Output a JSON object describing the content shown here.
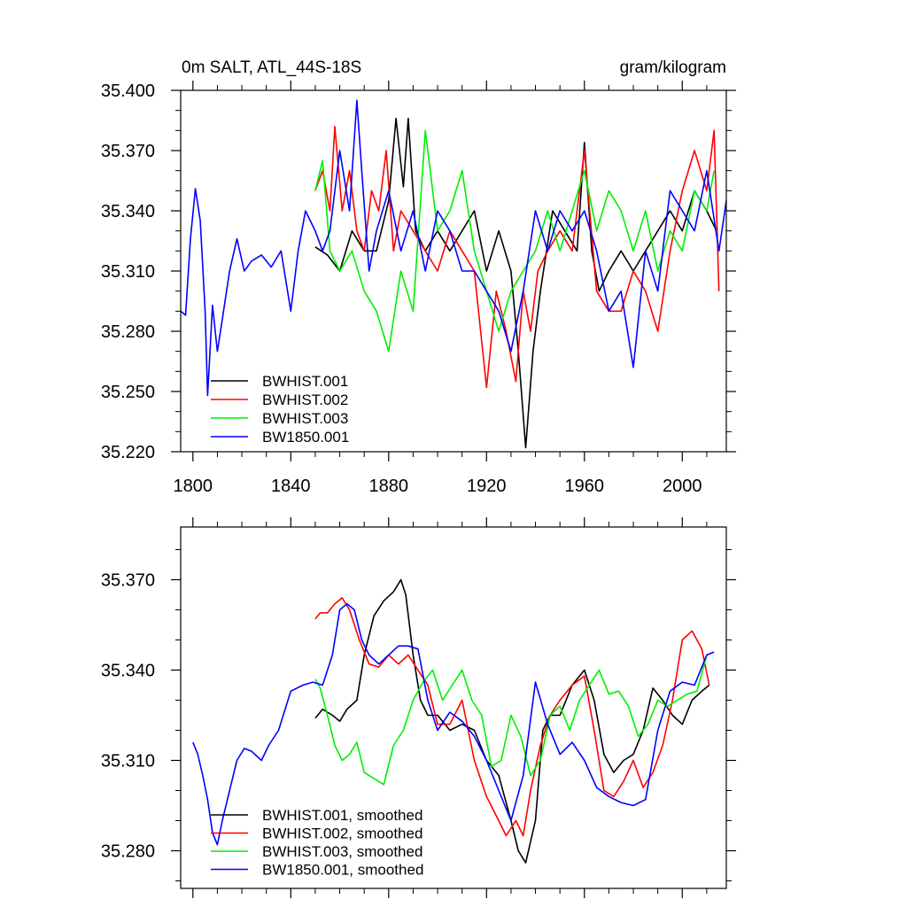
{
  "chart_data": [
    {
      "type": "line",
      "title_left": "0m SALT, ATL_44S-18S",
      "title_right": "gram/kilogram",
      "xlabel": "",
      "ylabel": "",
      "xlim": [
        1795,
        2018
      ],
      "ylim": [
        35.22,
        35.4
      ],
      "x_ticks": [
        1800,
        1840,
        1880,
        1920,
        1960,
        2000
      ],
      "y_ticks": [
        35.22,
        35.25,
        35.28,
        35.31,
        35.34,
        35.37,
        35.4
      ],
      "x_tick_labels": [
        "1800",
        "1840",
        "1880",
        "1920",
        "1960",
        "2000"
      ],
      "y_tick_labels": [
        "35.220",
        "35.250",
        "35.280",
        "35.310",
        "35.340",
        "35.370",
        "35.400"
      ],
      "grid": false,
      "legend_position": "bottom-left",
      "series": [
        {
          "name": "BWHIST.001",
          "color": "#000000",
          "x": [
            1850,
            1855,
            1860,
            1865,
            1870,
            1875,
            1880,
            1883,
            1886,
            1888,
            1891,
            1895,
            1900,
            1905,
            1910,
            1915,
            1920,
            1925,
            1930,
            1933,
            1936,
            1939,
            1942,
            1947,
            1952,
            1957,
            1960,
            1963,
            1966,
            1970,
            1975,
            1980,
            1985,
            1990,
            1995,
            2000,
            2005,
            2010,
            2014
          ],
          "values": [
            35.322,
            35.318,
            35.31,
            35.33,
            35.32,
            35.32,
            35.345,
            35.386,
            35.352,
            35.386,
            35.33,
            35.32,
            35.33,
            35.32,
            35.33,
            35.34,
            35.31,
            35.33,
            35.31,
            35.27,
            35.222,
            35.27,
            35.3,
            35.34,
            35.33,
            35.32,
            35.374,
            35.32,
            35.3,
            35.31,
            35.32,
            35.31,
            35.32,
            35.33,
            35.34,
            35.33,
            35.35,
            35.34,
            35.33
          ]
        },
        {
          "name": "BWHIST.002",
          "color": "#ff0000",
          "x": [
            1850,
            1853,
            1856,
            1858,
            1861,
            1864,
            1867,
            1870,
            1873,
            1876,
            1879,
            1882,
            1885,
            1890,
            1895,
            1900,
            1905,
            1910,
            1915,
            1920,
            1924,
            1928,
            1932,
            1935,
            1938,
            1941,
            1945,
            1950,
            1955,
            1960,
            1965,
            1970,
            1975,
            1980,
            1985,
            1990,
            1995,
            2000,
            2005,
            2010,
            2013,
            2015
          ],
          "values": [
            35.35,
            35.36,
            35.34,
            35.382,
            35.34,
            35.36,
            35.33,
            35.32,
            35.35,
            35.34,
            35.37,
            35.32,
            35.34,
            35.33,
            35.32,
            35.31,
            35.33,
            35.32,
            35.31,
            35.252,
            35.3,
            35.28,
            35.255,
            35.3,
            35.28,
            35.31,
            35.32,
            35.33,
            35.32,
            35.37,
            35.3,
            35.29,
            35.29,
            35.31,
            35.3,
            35.28,
            35.32,
            35.35,
            35.37,
            35.35,
            35.38,
            35.3
          ]
        },
        {
          "name": "BWHIST.003",
          "color": "#00ee00",
          "x": [
            1850,
            1853,
            1856,
            1860,
            1865,
            1870,
            1875,
            1880,
            1885,
            1890,
            1895,
            1900,
            1905,
            1910,
            1915,
            1920,
            1925,
            1930,
            1935,
            1940,
            1945,
            1950,
            1955,
            1960,
            1965,
            1970,
            1975,
            1980,
            1985,
            1990,
            1995,
            2000,
            2005,
            2010,
            2013
          ],
          "values": [
            35.35,
            35.365,
            35.32,
            35.31,
            35.32,
            35.3,
            35.29,
            35.27,
            35.31,
            35.29,
            35.38,
            35.33,
            35.34,
            35.36,
            35.32,
            35.3,
            35.28,
            35.3,
            35.31,
            35.32,
            35.34,
            35.32,
            35.34,
            35.36,
            35.33,
            35.35,
            35.34,
            35.32,
            35.34,
            35.31,
            35.33,
            35.32,
            35.35,
            35.34,
            35.36
          ]
        },
        {
          "name": "BW1850.001",
          "color": "#0000ff",
          "x": [
            1795,
            1797,
            1799,
            1801,
            1803,
            1805,
            1806,
            1808,
            1810,
            1812,
            1815,
            1818,
            1821,
            1824,
            1828,
            1832,
            1836,
            1840,
            1843,
            1846,
            1850,
            1853,
            1856,
            1860,
            1864,
            1867,
            1869,
            1872,
            1875,
            1880,
            1885,
            1890,
            1895,
            1900,
            1905,
            1910,
            1915,
            1920,
            1925,
            1930,
            1935,
            1940,
            1945,
            1950,
            1955,
            1960,
            1965,
            1970,
            1975,
            1980,
            1985,
            1990,
            1995,
            2000,
            2005,
            2010,
            2015,
            2018
          ],
          "values": [
            35.29,
            35.288,
            35.326,
            35.351,
            35.335,
            35.29,
            35.248,
            35.293,
            35.27,
            35.286,
            35.31,
            35.326,
            35.31,
            35.315,
            35.318,
            35.312,
            35.32,
            35.29,
            35.32,
            35.34,
            35.33,
            35.32,
            35.33,
            35.37,
            35.34,
            35.395,
            35.36,
            35.31,
            35.33,
            35.35,
            35.32,
            35.34,
            35.31,
            35.34,
            35.33,
            35.31,
            35.31,
            35.3,
            35.29,
            35.27,
            35.3,
            35.34,
            35.32,
            35.34,
            35.33,
            35.34,
            35.32,
            35.29,
            35.3,
            35.262,
            35.32,
            35.3,
            35.35,
            35.34,
            35.33,
            35.36,
            35.32,
            35.345
          ]
        }
      ]
    },
    {
      "type": "line",
      "title_left": "",
      "title_right": "",
      "xlabel": "",
      "ylabel": "",
      "xlim": [
        1795,
        2018
      ],
      "ylim": [
        35.2675,
        35.3875
      ],
      "x_ticks": [
        1800,
        1840,
        1880,
        1920,
        1960,
        2000
      ],
      "y_ticks": [
        35.28,
        35.31,
        35.34,
        35.37
      ],
      "x_tick_labels": [],
      "y_tick_labels": [
        "35.280",
        "35.310",
        "35.340",
        "35.370"
      ],
      "grid": false,
      "legend_position": "bottom-left",
      "series": [
        {
          "name": "BWHIST.001, smoothed",
          "color": "#000000",
          "x": [
            1850,
            1853,
            1857,
            1860,
            1863,
            1867,
            1870,
            1874,
            1878,
            1882,
            1885,
            1887,
            1890,
            1893,
            1896,
            1900,
            1905,
            1910,
            1915,
            1920,
            1925,
            1930,
            1933,
            1936,
            1940,
            1943,
            1946,
            1950,
            1955,
            1960,
            1964,
            1968,
            1972,
            1976,
            1980,
            1984,
            1988,
            1992,
            1996,
            2000,
            2004,
            2008,
            2011
          ],
          "values": [
            35.324,
            35.327,
            35.325,
            35.323,
            35.327,
            35.33,
            35.345,
            35.358,
            35.363,
            35.366,
            35.37,
            35.365,
            35.345,
            35.33,
            35.325,
            35.325,
            35.32,
            35.322,
            35.32,
            35.31,
            35.305,
            35.29,
            35.28,
            35.276,
            35.29,
            35.32,
            35.325,
            35.325,
            35.335,
            35.34,
            35.33,
            35.312,
            35.306,
            35.31,
            35.312,
            35.32,
            35.334,
            35.33,
            35.325,
            35.322,
            35.33,
            35.333,
            35.335
          ]
        },
        {
          "name": "BWHIST.002, smoothed",
          "color": "#ff0000",
          "x": [
            1850,
            1852,
            1855,
            1858,
            1861,
            1864,
            1868,
            1872,
            1876,
            1880,
            1884,
            1888,
            1892,
            1896,
            1900,
            1905,
            1910,
            1915,
            1920,
            1925,
            1928,
            1932,
            1935,
            1938,
            1942,
            1946,
            1950,
            1955,
            1960,
            1964,
            1968,
            1972,
            1976,
            1980,
            1984,
            1988,
            1992,
            1996,
            2000,
            2004,
            2008,
            2011
          ],
          "values": [
            35.357,
            35.359,
            35.359,
            35.362,
            35.364,
            35.36,
            35.35,
            35.342,
            35.341,
            35.345,
            35.342,
            35.345,
            35.34,
            35.335,
            35.322,
            35.322,
            35.33,
            35.31,
            35.298,
            35.29,
            35.285,
            35.29,
            35.285,
            35.3,
            35.315,
            35.325,
            35.33,
            35.335,
            35.338,
            35.32,
            35.3,
            35.298,
            35.303,
            35.31,
            35.301,
            35.306,
            35.315,
            35.33,
            35.35,
            35.353,
            35.347,
            35.335
          ]
        },
        {
          "name": "BWHIST.003, smoothed",
          "color": "#00ee00",
          "x": [
            1850,
            1852,
            1855,
            1858,
            1861,
            1864,
            1867,
            1870,
            1874,
            1878,
            1882,
            1886,
            1890,
            1894,
            1898,
            1902,
            1906,
            1910,
            1914,
            1918,
            1922,
            1926,
            1930,
            1934,
            1938,
            1942,
            1946,
            1950,
            1954,
            1958,
            1962,
            1966,
            1970,
            1974,
            1978,
            1982,
            1986,
            1990,
            1994,
            1998,
            2002,
            2006,
            2010
          ],
          "values": [
            35.337,
            35.334,
            35.325,
            35.315,
            35.31,
            35.312,
            35.316,
            35.306,
            35.304,
            35.302,
            35.315,
            35.32,
            35.33,
            35.336,
            35.34,
            35.33,
            35.335,
            35.34,
            35.33,
            35.325,
            35.308,
            35.31,
            35.325,
            35.318,
            35.305,
            35.31,
            35.325,
            35.328,
            35.32,
            35.33,
            35.335,
            35.34,
            35.332,
            35.333,
            35.328,
            35.318,
            35.322,
            35.33,
            35.328,
            35.33,
            35.332,
            35.333,
            35.345
          ]
        },
        {
          "name": "BW1850.001, smoothed",
          "color": "#0000ff",
          "x": [
            1800,
            1802,
            1804,
            1806,
            1808,
            1810,
            1812,
            1815,
            1818,
            1821,
            1824,
            1828,
            1831,
            1835,
            1840,
            1845,
            1849,
            1853,
            1857,
            1860,
            1863,
            1866,
            1869,
            1872,
            1876,
            1880,
            1884,
            1888,
            1892,
            1896,
            1900,
            1905,
            1910,
            1915,
            1920,
            1925,
            1930,
            1935,
            1940,
            1945,
            1950,
            1955,
            1960,
            1965,
            1970,
            1975,
            1980,
            1985,
            1990,
            1995,
            2000,
            2005,
            2010,
            2013
          ],
          "values": [
            35.316,
            35.312,
            35.305,
            35.297,
            35.286,
            35.282,
            35.29,
            35.3,
            35.31,
            35.314,
            35.313,
            35.31,
            35.315,
            35.32,
            35.333,
            35.335,
            35.336,
            35.335,
            35.345,
            35.36,
            35.362,
            35.36,
            35.35,
            35.345,
            35.342,
            35.345,
            35.348,
            35.348,
            35.347,
            35.33,
            35.32,
            35.326,
            35.323,
            35.318,
            35.31,
            35.3,
            35.29,
            35.305,
            35.336,
            35.322,
            35.312,
            35.316,
            35.31,
            35.301,
            35.298,
            35.296,
            35.295,
            35.297,
            35.32,
            35.333,
            35.336,
            35.335,
            35.345,
            35.346
          ]
        }
      ]
    }
  ]
}
